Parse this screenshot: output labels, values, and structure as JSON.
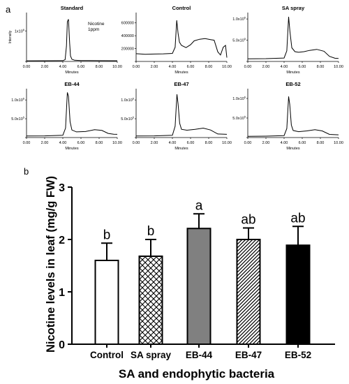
{
  "panel_labels": {
    "a": "a",
    "b": "b"
  },
  "chart_data": [
    {
      "type": "line",
      "title": "Standard",
      "annotation": [
        "Nicotine",
        "1ppm"
      ],
      "ylabel": "Intensity",
      "xlabel": "Minutes",
      "xticks": [
        "0.00",
        "2.00",
        "4.00",
        "6.00",
        "8.00",
        "10.00"
      ],
      "yticks": [
        {
          "v": 0,
          "l": ""
        },
        {
          "v": 1000000,
          "l": "1x10^6"
        }
      ],
      "xlim": [
        0,
        10
      ],
      "ylim": [
        0,
        1600000
      ],
      "series": [
        {
          "points": [
            [
              0,
              20000
            ],
            [
              4.0,
              25000
            ],
            [
              4.25,
              60000
            ],
            [
              4.4,
              500000
            ],
            [
              4.5,
              1300000
            ],
            [
              4.62,
              1380000
            ],
            [
              4.75,
              600000
            ],
            [
              4.85,
              180000
            ],
            [
              5.0,
              70000
            ],
            [
              5.3,
              40000
            ],
            [
              6,
              30000
            ],
            [
              8,
              25000
            ],
            [
              10,
              22000
            ]
          ]
        }
      ]
    },
    {
      "type": "line",
      "title": "Control",
      "xlabel": "Minutes",
      "xticks": [
        "0.00",
        "2.00",
        "4.00",
        "6.00",
        "8.00",
        "10.00"
      ],
      "yticks": [
        {
          "v": 0,
          "l": ""
        },
        {
          "v": 200000,
          "l": "200000"
        },
        {
          "v": 400000,
          "l": "400000"
        },
        {
          "v": 600000,
          "l": "600000"
        }
      ],
      "xlim": [
        0,
        10
      ],
      "ylim": [
        0,
        760000
      ],
      "series": [
        {
          "points": [
            [
              0,
              120000
            ],
            [
              1,
              112000
            ],
            [
              2,
              115000
            ],
            [
              3,
              118000
            ],
            [
              4.0,
              125000
            ],
            [
              4.3,
              220000
            ],
            [
              4.48,
              640000
            ],
            [
              4.62,
              440000
            ],
            [
              4.78,
              300000
            ],
            [
              5.0,
              250000
            ],
            [
              5.5,
              215000
            ],
            [
              6.0,
              260000
            ],
            [
              6.4,
              320000
            ],
            [
              7.0,
              345000
            ],
            [
              7.6,
              355000
            ],
            [
              8.2,
              340000
            ],
            [
              8.6,
              330000
            ],
            [
              9.0,
              150000
            ],
            [
              9.3,
              100000
            ],
            [
              9.6,
              220000
            ],
            [
              9.85,
              250000
            ],
            [
              10,
              60000
            ]
          ]
        }
      ]
    },
    {
      "type": "line",
      "title": "SA spray",
      "xlabel": "Minutes",
      "xticks": [
        "0.00",
        "2.00",
        "4.00",
        "6.00",
        "8.00",
        "10.00"
      ],
      "yticks": [
        {
          "v": 0,
          "l": ""
        },
        {
          "v": 500000,
          "l": "5.0x10^5"
        },
        {
          "v": 1000000,
          "l": "1.0x10^6"
        }
      ],
      "xlim": [
        0,
        10
      ],
      "ylim": [
        0,
        1150000
      ],
      "series": [
        {
          "points": [
            [
              0,
              60000
            ],
            [
              2,
              65000
            ],
            [
              4.0,
              80000
            ],
            [
              4.3,
              250000
            ],
            [
              4.5,
              1050000
            ],
            [
              4.65,
              700000
            ],
            [
              4.85,
              320000
            ],
            [
              5.2,
              230000
            ],
            [
              5.6,
              215000
            ],
            [
              6.2,
              230000
            ],
            [
              6.8,
              260000
            ],
            [
              7.6,
              285000
            ],
            [
              8.4,
              240000
            ],
            [
              9.0,
              120000
            ],
            [
              9.6,
              75000
            ],
            [
              10,
              70000
            ]
          ]
        }
      ]
    },
    {
      "type": "line",
      "title": "EB-44",
      "xlabel": "Minutes",
      "xticks": [
        "0.00",
        "2.00",
        "4.00",
        "6.00",
        "8.00",
        "10.00"
      ],
      "yticks": [
        {
          "v": 0,
          "l": ""
        },
        {
          "v": 500000,
          "l": "5.0x10^5"
        },
        {
          "v": 1000000,
          "l": "1.0x10^6"
        }
      ],
      "xlim": [
        0,
        10
      ],
      "ylim": [
        0,
        1300000
      ],
      "series": [
        {
          "points": [
            [
              0,
              40000
            ],
            [
              2,
              45000
            ],
            [
              4.0,
              60000
            ],
            [
              4.3,
              250000
            ],
            [
              4.5,
              1200000
            ],
            [
              4.62,
              1100000
            ],
            [
              4.8,
              420000
            ],
            [
              5.0,
              200000
            ],
            [
              5.5,
              150000
            ],
            [
              6.5,
              160000
            ],
            [
              7.5,
              210000
            ],
            [
              8.3,
              190000
            ],
            [
              9.0,
              110000
            ],
            [
              9.6,
              90000
            ],
            [
              10,
              85000
            ]
          ]
        }
      ]
    },
    {
      "type": "line",
      "title": "EB-47",
      "xlabel": "Minutes",
      "xticks": [
        "0.00",
        "2.00",
        "4.00",
        "6.00",
        "8.00",
        "10.00"
      ],
      "yticks": [
        {
          "v": 0,
          "l": ""
        },
        {
          "v": 500000,
          "l": "5.0x10^5"
        },
        {
          "v": 1000000,
          "l": "1.0x10^6"
        }
      ],
      "xlim": [
        0,
        10
      ],
      "ylim": [
        0,
        1300000
      ],
      "series": [
        {
          "points": [
            [
              0,
              40000
            ],
            [
              2,
              45000
            ],
            [
              4.0,
              60000
            ],
            [
              4.3,
              300000
            ],
            [
              4.5,
              1150000
            ],
            [
              4.62,
              900000
            ],
            [
              4.8,
              380000
            ],
            [
              5.0,
              220000
            ],
            [
              5.6,
              195000
            ],
            [
              6.5,
              220000
            ],
            [
              7.4,
              250000
            ],
            [
              8.2,
              200000
            ],
            [
              9.0,
              95000
            ],
            [
              10,
              85000
            ]
          ]
        }
      ]
    },
    {
      "type": "line",
      "title": "EB-52",
      "xlabel": "Minutes",
      "xticks": [
        "0.00",
        "2.00",
        "4.00",
        "6.00",
        "8.00",
        "10.00"
      ],
      "yticks": [
        {
          "v": 0,
          "l": ""
        },
        {
          "v": 500000,
          "l": "5.0x10^5"
        },
        {
          "v": 1000000,
          "l": "1.0x10^6"
        }
      ],
      "xlim": [
        0,
        10
      ],
      "ylim": [
        0,
        1250000
      ],
      "series": [
        {
          "points": [
            [
              0,
              30000
            ],
            [
              2,
              35000
            ],
            [
              4.0,
              50000
            ],
            [
              4.3,
              230000
            ],
            [
              4.5,
              1050000
            ],
            [
              4.62,
              850000
            ],
            [
              4.8,
              320000
            ],
            [
              5.0,
              180000
            ],
            [
              5.6,
              150000
            ],
            [
              6.5,
              170000
            ],
            [
              7.4,
              200000
            ],
            [
              8.2,
              170000
            ],
            [
              9.0,
              80000
            ],
            [
              10,
              70000
            ]
          ]
        }
      ]
    },
    {
      "type": "bar",
      "categories": [
        "Control",
        "SA spray",
        "EB-44",
        "EB-47",
        "EB-52"
      ],
      "values": [
        1.6,
        1.68,
        2.21,
        2.0,
        1.89
      ],
      "errors": [
        0.33,
        0.32,
        0.28,
        0.22,
        0.36
      ],
      "significance": [
        "b",
        "b",
        "a",
        "ab",
        "ab"
      ],
      "fills": [
        "white",
        "crosshatch",
        "gray",
        "diagonal",
        "black"
      ],
      "colors": {
        "gray": "#808080",
        "black": "#000000",
        "white": "#ffffff"
      },
      "ylabel": "Nicotine levels in leaf (mg/g FW)",
      "xlabel": "SA and endophytic bacteria",
      "ylim": [
        0,
        3
      ],
      "yticks": [
        "0",
        "1",
        "2",
        "3"
      ]
    }
  ]
}
